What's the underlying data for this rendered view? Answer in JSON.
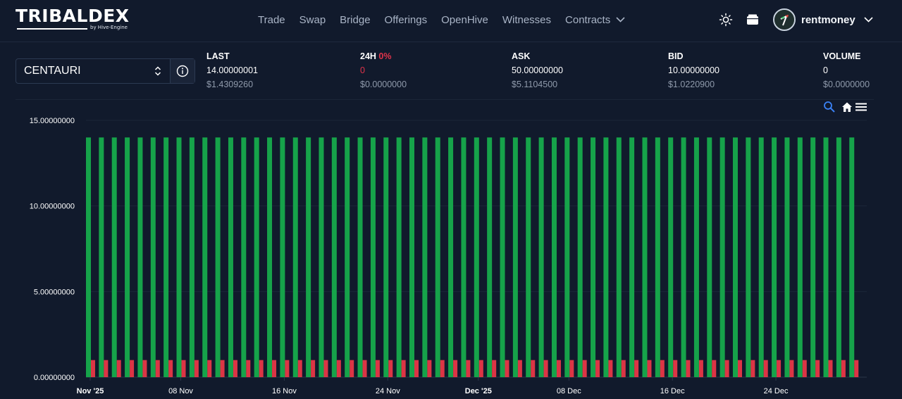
{
  "app": {
    "logo": "TRIBALDEX",
    "logo_sub": "by Hive-Engine"
  },
  "nav": {
    "items": [
      {
        "label": "Trade",
        "name": "nav-trade"
      },
      {
        "label": "Swap",
        "name": "nav-swap"
      },
      {
        "label": "Bridge",
        "name": "nav-bridge"
      },
      {
        "label": "Offerings",
        "name": "nav-offerings"
      },
      {
        "label": "OpenHive",
        "name": "nav-openhive"
      },
      {
        "label": "Witnesses",
        "name": "nav-witnesses"
      },
      {
        "label": "Contracts",
        "name": "nav-contracts",
        "dropdown": true
      }
    ]
  },
  "header": {
    "theme_icon": "sun-icon",
    "wallet_icon": "wallet-icon",
    "username": "rentmoney"
  },
  "selector": {
    "value": "CENTAURI",
    "info_icon": "info-icon"
  },
  "stats": {
    "last": {
      "label": "LAST",
      "value": "14.00000001",
      "usd": "$1.4309260"
    },
    "change": {
      "label": "24H",
      "pct": "0%",
      "value": "0",
      "usd": "$0.0000000"
    },
    "ask": {
      "label": "ASK",
      "value": "50.00000000",
      "usd": "$5.1104500"
    },
    "bid": {
      "label": "BID",
      "value": "10.00000000",
      "usd": "$1.0220900"
    },
    "volume": {
      "label": "VOLUME",
      "value": "0",
      "usd": "$0.0000000"
    }
  },
  "colors": {
    "background": "#111a2c",
    "up": "#16a34a",
    "down": "#dc3545",
    "accent": "#3b82f6",
    "negative_text": "#e0334a"
  },
  "chart_data": {
    "type": "bar",
    "ylim": [
      0,
      15
    ],
    "y_ticks": [
      "0.00000000",
      "5.00000000",
      "10.00000000",
      "15.00000000"
    ],
    "x_ticks": [
      {
        "label": "Nov '25",
        "day": 0,
        "bold": true
      },
      {
        "label": "08 Nov",
        "day": 7
      },
      {
        "label": "16 Nov",
        "day": 15
      },
      {
        "label": "24 Nov",
        "day": 23
      },
      {
        "label": "Dec '25",
        "day": 30,
        "bold": true
      },
      {
        "label": "08 Dec",
        "day": 37
      },
      {
        "label": "16 Dec",
        "day": 45
      },
      {
        "label": "24 Dec",
        "day": 53
      }
    ],
    "series": [
      {
        "value": 14,
        "color": "#16a34a"
      },
      {
        "value": 1,
        "color": "#dc3545"
      }
    ],
    "days": 60,
    "grid": true,
    "legend": "none"
  },
  "toolbar": {
    "zoom_icon": "zoom-icon",
    "home_icon": "home-icon",
    "menu_icon": "menu-icon"
  }
}
